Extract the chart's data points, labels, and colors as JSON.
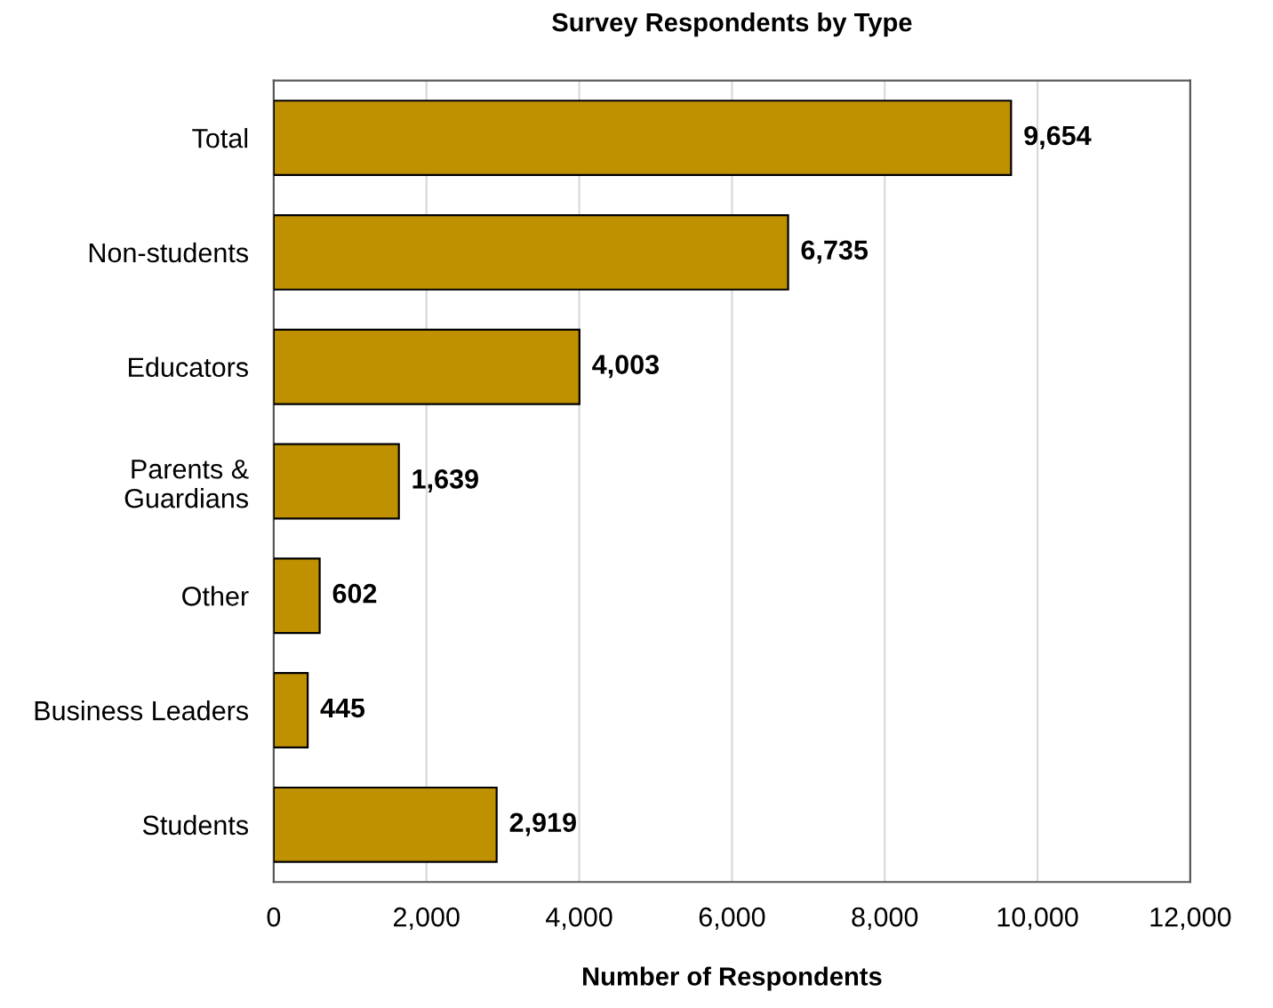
{
  "chart_data": {
    "type": "bar",
    "orientation": "horizontal",
    "title": "Survey Respondents by Type",
    "xlabel": "Number of Respondents",
    "categories": [
      "Total",
      "Non-students",
      "Educators",
      "Parents &\nGuardians",
      "Other",
      "Business Leaders",
      "Students"
    ],
    "values": [
      9654,
      6735,
      4003,
      1639,
      602,
      445,
      2919
    ],
    "color": "#bf9000",
    "value_labels": [
      "9,654",
      "6,735",
      "4,003",
      "1,639",
      "602",
      "445",
      "2,919"
    ],
    "xlim": [
      0,
      12000
    ],
    "xticks": [
      0,
      {
        "value": 2000,
        "label": "2,000"
      },
      {
        "value": 4000,
        "label": "4,000"
      },
      {
        "value": 6000,
        "label": "6,000"
      },
      {
        "value": 8000,
        "label": "8,000"
      },
      {
        "value": 10000,
        "label": "10,000"
      },
      {
        "value": 12000,
        "label": "12,000"
      }
    ],
    "grid": "x",
    "legend": false
  }
}
